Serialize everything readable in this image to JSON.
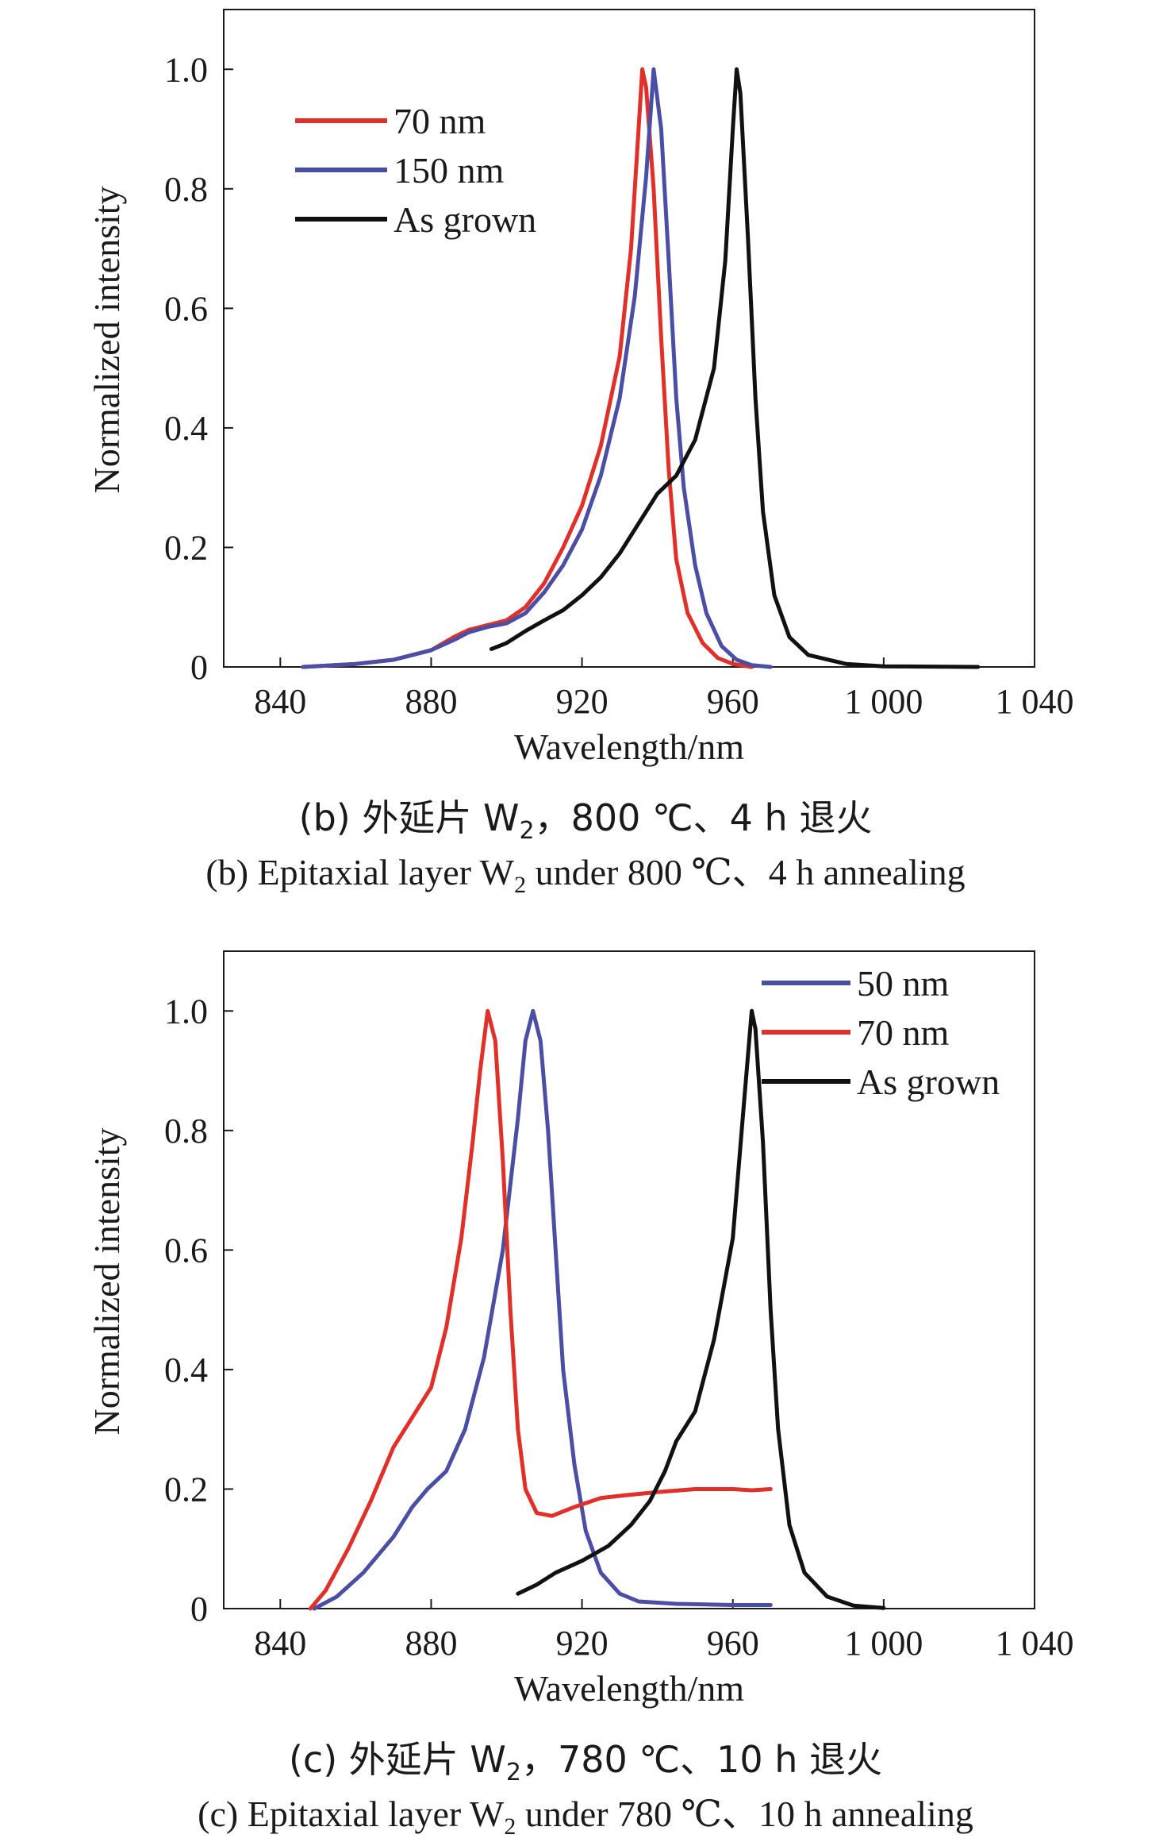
{
  "colors": {
    "red": "#e0302a",
    "blue": "#4a4fa3",
    "black": "#111111"
  },
  "chart_data": [
    {
      "type": "line",
      "xlabel": "Wavelength/nm",
      "ylabel": "Normalized intensity",
      "xlim": [
        825,
        1040
      ],
      "ylim": [
        0,
        1.1
      ],
      "x_ticks": [
        840,
        880,
        920,
        960,
        1000,
        1040
      ],
      "x_tick_labels": [
        "840",
        "880",
        "920",
        "960",
        "1 000",
        "1 040"
      ],
      "y_ticks": [
        0,
        0.2,
        0.4,
        0.6,
        0.8,
        1.0
      ],
      "y_tick_labels": [
        "0",
        "0.2",
        "0.4",
        "0.6",
        "0.8",
        "1.0"
      ],
      "legend_position": "top-left",
      "caption_cn_prefix": "(b) 外延片 W",
      "caption_cn_sub": "2",
      "caption_cn_suffix": "，800 ℃、4 h 退火",
      "caption_en_prefix": "(b) Epitaxial layer W",
      "caption_en_sub": "2",
      "caption_en_suffix": " under 800 ℃、4 h annealing",
      "series": [
        {
          "name": "70 nm",
          "color": "red",
          "points": [
            [
              846,
              0
            ],
            [
              860,
              0.005
            ],
            [
              870,
              0.012
            ],
            [
              880,
              0.028
            ],
            [
              886,
              0.05
            ],
            [
              890,
              0.062
            ],
            [
              895,
              0.07
            ],
            [
              900,
              0.078
            ],
            [
              905,
              0.1
            ],
            [
              910,
              0.14
            ],
            [
              915,
              0.2
            ],
            [
              920,
              0.27
            ],
            [
              925,
              0.37
            ],
            [
              930,
              0.52
            ],
            [
              933,
              0.7
            ],
            [
              935,
              0.9
            ],
            [
              936,
              1.0
            ],
            [
              937,
              0.97
            ],
            [
              939,
              0.8
            ],
            [
              941,
              0.55
            ],
            [
              943,
              0.33
            ],
            [
              945,
              0.18
            ],
            [
              948,
              0.09
            ],
            [
              952,
              0.04
            ],
            [
              956,
              0.015
            ],
            [
              960,
              0.005
            ],
            [
              965,
              0
            ]
          ]
        },
        {
          "name": "150 nm",
          "color": "blue",
          "points": [
            [
              846,
              0
            ],
            [
              860,
              0.005
            ],
            [
              870,
              0.012
            ],
            [
              880,
              0.028
            ],
            [
              886,
              0.045
            ],
            [
              890,
              0.058
            ],
            [
              895,
              0.067
            ],
            [
              900,
              0.073
            ],
            [
              905,
              0.09
            ],
            [
              910,
              0.125
            ],
            [
              915,
              0.17
            ],
            [
              920,
              0.23
            ],
            [
              925,
              0.32
            ],
            [
              930,
              0.45
            ],
            [
              934,
              0.62
            ],
            [
              937,
              0.82
            ],
            [
              939,
              1.0
            ],
            [
              941,
              0.9
            ],
            [
              943,
              0.68
            ],
            [
              945,
              0.45
            ],
            [
              947,
              0.3
            ],
            [
              950,
              0.17
            ],
            [
              953,
              0.09
            ],
            [
              957,
              0.035
            ],
            [
              961,
              0.012
            ],
            [
              965,
              0.003
            ],
            [
              970,
              0
            ]
          ]
        },
        {
          "name": "As grown",
          "color": "black",
          "points": [
            [
              896,
              0.03
            ],
            [
              900,
              0.04
            ],
            [
              905,
              0.06
            ],
            [
              910,
              0.078
            ],
            [
              915,
              0.095
            ],
            [
              920,
              0.12
            ],
            [
              925,
              0.15
            ],
            [
              930,
              0.19
            ],
            [
              935,
              0.24
            ],
            [
              940,
              0.29
            ],
            [
              945,
              0.32
            ],
            [
              950,
              0.38
            ],
            [
              955,
              0.5
            ],
            [
              958,
              0.68
            ],
            [
              960,
              0.9
            ],
            [
              961,
              1.0
            ],
            [
              962,
              0.96
            ],
            [
              964,
              0.72
            ],
            [
              966,
              0.45
            ],
            [
              968,
              0.26
            ],
            [
              971,
              0.12
            ],
            [
              975,
              0.05
            ],
            [
              980,
              0.02
            ],
            [
              990,
              0.005
            ],
            [
              1000,
              0.001
            ],
            [
              1025,
              0
            ]
          ]
        }
      ]
    },
    {
      "type": "line",
      "xlabel": "Wavelength/nm",
      "ylabel": "Normalized intensity",
      "xlim": [
        825,
        1040
      ],
      "ylim": [
        0,
        1.1
      ],
      "x_ticks": [
        840,
        880,
        920,
        960,
        1000,
        1040
      ],
      "x_tick_labels": [
        "840",
        "880",
        "920",
        "960",
        "1 000",
        "1 040"
      ],
      "y_ticks": [
        0,
        0.2,
        0.4,
        0.6,
        0.8,
        1.0
      ],
      "y_tick_labels": [
        "0",
        "0.2",
        "0.4",
        "0.6",
        "0.8",
        "1.0"
      ],
      "legend_position": "top-right",
      "caption_cn_prefix": "(c) 外延片 W",
      "caption_cn_sub": "2",
      "caption_cn_suffix": "，780 ℃、10 h 退火",
      "caption_en_prefix": "(c) Epitaxial layer W",
      "caption_en_sub": "2",
      "caption_en_suffix": " under 780 ℃、10 h annealing",
      "series": [
        {
          "name": "50 nm",
          "color": "blue",
          "points": [
            [
              849,
              0
            ],
            [
              855,
              0.02
            ],
            [
              862,
              0.06
            ],
            [
              870,
              0.12
            ],
            [
              875,
              0.17
            ],
            [
              879,
              0.2
            ],
            [
              884,
              0.23
            ],
            [
              889,
              0.3
            ],
            [
              894,
              0.42
            ],
            [
              899,
              0.6
            ],
            [
              903,
              0.82
            ],
            [
              905,
              0.95
            ],
            [
              907,
              1.0
            ],
            [
              909,
              0.95
            ],
            [
              911,
              0.8
            ],
            [
              913,
              0.6
            ],
            [
              915,
              0.4
            ],
            [
              918,
              0.24
            ],
            [
              921,
              0.13
            ],
            [
              925,
              0.06
            ],
            [
              930,
              0.025
            ],
            [
              935,
              0.012
            ],
            [
              945,
              0.008
            ],
            [
              960,
              0.006
            ],
            [
              970,
              0.006
            ]
          ]
        },
        {
          "name": "70 nm",
          "color": "red",
          "points": [
            [
              848,
              0
            ],
            [
              852,
              0.03
            ],
            [
              858,
              0.1
            ],
            [
              864,
              0.18
            ],
            [
              870,
              0.27
            ],
            [
              875,
              0.32
            ],
            [
              880,
              0.37
            ],
            [
              884,
              0.47
            ],
            [
              888,
              0.62
            ],
            [
              891,
              0.78
            ],
            [
              893,
              0.9
            ],
            [
              895,
              1.0
            ],
            [
              897,
              0.95
            ],
            [
              899,
              0.75
            ],
            [
              901,
              0.5
            ],
            [
              903,
              0.3
            ],
            [
              905,
              0.2
            ],
            [
              908,
              0.16
            ],
            [
              912,
              0.155
            ],
            [
              918,
              0.17
            ],
            [
              925,
              0.185
            ],
            [
              932,
              0.19
            ],
            [
              940,
              0.195
            ],
            [
              950,
              0.2
            ],
            [
              960,
              0.2
            ],
            [
              965,
              0.198
            ],
            [
              970,
              0.2
            ]
          ]
        },
        {
          "name": "As grown",
          "color": "black",
          "points": [
            [
              903,
              0.025
            ],
            [
              908,
              0.04
            ],
            [
              913,
              0.06
            ],
            [
              920,
              0.08
            ],
            [
              927,
              0.105
            ],
            [
              933,
              0.14
            ],
            [
              938,
              0.18
            ],
            [
              942,
              0.23
            ],
            [
              945,
              0.28
            ],
            [
              950,
              0.33
            ],
            [
              955,
              0.45
            ],
            [
              960,
              0.62
            ],
            [
              963,
              0.85
            ],
            [
              965,
              1.0
            ],
            [
              966,
              0.97
            ],
            [
              968,
              0.78
            ],
            [
              970,
              0.5
            ],
            [
              972,
              0.3
            ],
            [
              975,
              0.14
            ],
            [
              979,
              0.06
            ],
            [
              985,
              0.02
            ],
            [
              992,
              0.005
            ],
            [
              1000,
              0.001
            ]
          ]
        }
      ]
    }
  ]
}
